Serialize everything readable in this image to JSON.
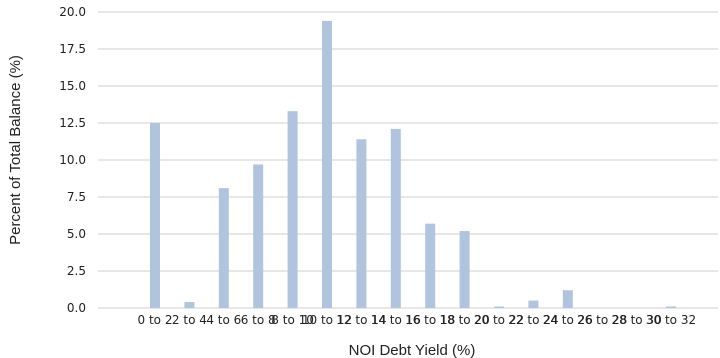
{
  "chart_data": {
    "type": "bar",
    "title": "",
    "xlabel": "NOI Debt Yield (%)",
    "ylabel": "Percent of Total Balance (%)",
    "ylim": [
      0,
      20
    ],
    "yticks": [
      "0.0",
      "2.5",
      "5.0",
      "7.5",
      "10.0",
      "12.5",
      "15.0",
      "17.5",
      "20.0"
    ],
    "grid": "horizontal",
    "bar_color": "#b0c4de",
    "categories": [
      "0 to 2",
      "2 to 4",
      "4 to 6",
      "6 to 8",
      "8 to 10",
      "10 to 12",
      "12 to 14",
      "14 to 16",
      "16 to 18",
      "18 to 20",
      "20 to 22",
      "22 to 24",
      "24 to 26",
      "26 to 28",
      "28 to 30",
      "30 to 32"
    ],
    "values": [
      12.5,
      0.4,
      8.1,
      9.7,
      13.3,
      19.4,
      11.4,
      12.1,
      5.7,
      5.2,
      0.1,
      0.5,
      1.2,
      0.0,
      0.0,
      0.1
    ]
  }
}
